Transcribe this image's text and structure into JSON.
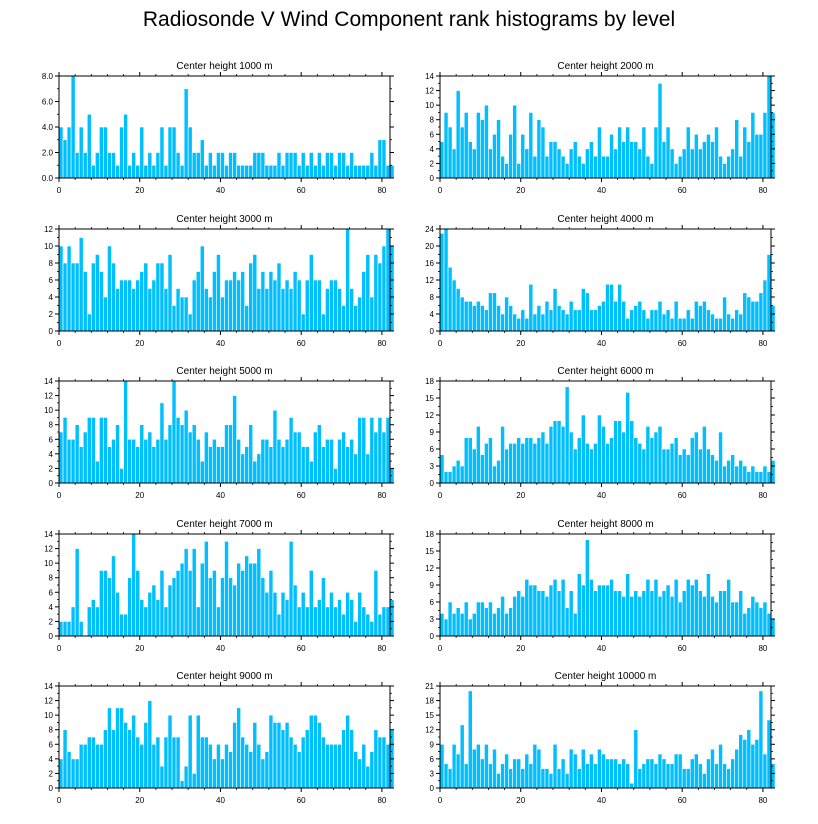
{
  "title": "Radiosonde V Wind Component rank histograms by level",
  "colors": {
    "bar": "#00bfff",
    "bar_edge": "#ffffff",
    "axis": "#000000"
  },
  "chart_data": [
    {
      "type": "bar",
      "title": "Center height 1000 m",
      "xlim": [
        0,
        82
      ],
      "ylim": [
        0,
        8
      ],
      "yticks": [
        "0.0",
        "2.0",
        "4.0",
        "6.0",
        "8.0"
      ],
      "ytick_values": [
        0,
        2,
        4,
        6,
        8
      ],
      "xticks": [
        "0",
        "20",
        "40",
        "60",
        "80"
      ],
      "xtick_values": [
        0,
        20,
        40,
        60,
        80
      ],
      "values": [
        4,
        3,
        4,
        8,
        2,
        4,
        2,
        5,
        1,
        2,
        4,
        4,
        2,
        2,
        1,
        4,
        5,
        1,
        2,
        1,
        4,
        1,
        2,
        1,
        2,
        4,
        1,
        4,
        4,
        2,
        1,
        7,
        4,
        2,
        2,
        3,
        1,
        2,
        1,
        2,
        2,
        1,
        2,
        2,
        1,
        1,
        1,
        1,
        2,
        2,
        2,
        1,
        1,
        1,
        2,
        1,
        2,
        2,
        2,
        1,
        2,
        1,
        2,
        1,
        2,
        1,
        2,
        2,
        1,
        2,
        2,
        1,
        2,
        1,
        1,
        1,
        1,
        2,
        1,
        3,
        3,
        1,
        1
      ]
    },
    {
      "type": "bar",
      "title": "Center height 2000 m",
      "xlim": [
        0,
        82
      ],
      "ylim": [
        0,
        14
      ],
      "yticks": [
        "0",
        "2",
        "4",
        "6",
        "8",
        "10",
        "12",
        "14"
      ],
      "ytick_values": [
        0,
        2,
        4,
        6,
        8,
        10,
        12,
        14
      ],
      "xticks": [
        "0",
        "20",
        "40",
        "60",
        "80"
      ],
      "xtick_values": [
        0,
        20,
        40,
        60,
        80
      ],
      "values": [
        5,
        9,
        7,
        4,
        12,
        7,
        9,
        5,
        4,
        9,
        8,
        10,
        4,
        6,
        8,
        3,
        2,
        6,
        10,
        2,
        6,
        4,
        9,
        3,
        8,
        7,
        3,
        5,
        5,
        4,
        3,
        2,
        4,
        5,
        3,
        2,
        4,
        5,
        3,
        7,
        3,
        3,
        6,
        4,
        7,
        5,
        7,
        5,
        5,
        4,
        7,
        3,
        2,
        7,
        13,
        5,
        7,
        4,
        2,
        3,
        4,
        7,
        4,
        6,
        4,
        5,
        6,
        5,
        7,
        3,
        2,
        3,
        4,
        8,
        3,
        7,
        5,
        9,
        6,
        6,
        9,
        14,
        9
      ]
    },
    {
      "type": "bar",
      "title": "Center height 3000 m",
      "xlim": [
        0,
        82
      ],
      "ylim": [
        0,
        12
      ],
      "yticks": [
        "0",
        "2",
        "4",
        "6",
        "8",
        "10",
        "12"
      ],
      "ytick_values": [
        0,
        2,
        4,
        6,
        8,
        10,
        12
      ],
      "xticks": [
        "0",
        "20",
        "40",
        "60",
        "80"
      ],
      "xtick_values": [
        0,
        20,
        40,
        60,
        80
      ],
      "values": [
        10,
        8,
        10,
        8,
        8,
        11,
        7,
        2,
        8,
        9,
        7,
        4,
        10,
        8,
        5,
        6,
        6,
        6,
        5,
        6,
        7,
        8,
        5,
        6,
        8,
        8,
        5,
        9,
        3,
        5,
        4,
        4,
        2,
        6,
        7,
        10,
        5,
        4,
        7,
        9,
        4,
        6,
        6,
        7,
        6,
        7,
        3,
        8,
        9,
        5,
        7,
        5,
        7,
        6,
        8,
        5,
        6,
        5,
        7,
        6,
        2,
        6,
        9,
        6,
        6,
        2,
        5,
        6,
        6,
        5,
        3,
        12,
        5,
        3,
        4,
        7,
        9,
        4,
        9,
        8,
        10,
        12,
        10
      ]
    },
    {
      "type": "bar",
      "title": "Center height 4000 m",
      "xlim": [
        0,
        82
      ],
      "ylim": [
        0,
        24
      ],
      "yticks": [
        "0",
        "4",
        "8",
        "12",
        "16",
        "20",
        "24"
      ],
      "ytick_values": [
        0,
        4,
        8,
        12,
        16,
        20,
        24
      ],
      "xticks": [
        "0",
        "20",
        "40",
        "60",
        "80"
      ],
      "xtick_values": [
        0,
        20,
        40,
        60,
        80
      ],
      "values": [
        23,
        24,
        15,
        12,
        10,
        8,
        7,
        7,
        6,
        7,
        6,
        5,
        9,
        9,
        6,
        4,
        8,
        6,
        4,
        3,
        5,
        3,
        11,
        4,
        6,
        4,
        7,
        5,
        10,
        6,
        5,
        4,
        7,
        5,
        5,
        10,
        9,
        5,
        5,
        6,
        7,
        11,
        11,
        7,
        11,
        7,
        3,
        5,
        6,
        7,
        5,
        3,
        5,
        5,
        7,
        4,
        5,
        3,
        7,
        3,
        3,
        5,
        3,
        7,
        6,
        7,
        5,
        4,
        3,
        3,
        8,
        4,
        3,
        5,
        4,
        9,
        8,
        7,
        7,
        9,
        12,
        18,
        6
      ]
    },
    {
      "type": "bar",
      "title": "Center height 5000 m",
      "xlim": [
        0,
        82
      ],
      "ylim": [
        0,
        14
      ],
      "yticks": [
        "0",
        "2",
        "4",
        "6",
        "8",
        "10",
        "12",
        "14"
      ],
      "ytick_values": [
        0,
        2,
        4,
        6,
        8,
        10,
        12,
        14
      ],
      "xticks": [
        "0",
        "20",
        "40",
        "60",
        "80"
      ],
      "xtick_values": [
        0,
        20,
        40,
        60,
        80
      ],
      "values": [
        7,
        9,
        6,
        6,
        8,
        5,
        7,
        9,
        9,
        3,
        9,
        9,
        5,
        6,
        8,
        2,
        14,
        6,
        6,
        5,
        8,
        6,
        7,
        5,
        6,
        11,
        6,
        8,
        14,
        9,
        8,
        10,
        7,
        8,
        6,
        3,
        7,
        5,
        6,
        5,
        5,
        8,
        8,
        12,
        6,
        4,
        5,
        8,
        3,
        4,
        6,
        6,
        5,
        10,
        6,
        5,
        6,
        9,
        7,
        7,
        5,
        5,
        3,
        7,
        8,
        5,
        6,
        6,
        2,
        6,
        7,
        5,
        6,
        4,
        9,
        9,
        4,
        9,
        7,
        9,
        7,
        9,
        2
      ]
    },
    {
      "type": "bar",
      "title": "Center height 6000 m",
      "xlim": [
        0,
        82
      ],
      "ylim": [
        0,
        18
      ],
      "yticks": [
        "0",
        "3",
        "6",
        "9",
        "12",
        "15",
        "18"
      ],
      "ytick_values": [
        0,
        3,
        6,
        9,
        12,
        15,
        18
      ],
      "xticks": [
        "0",
        "20",
        "40",
        "60",
        "80"
      ],
      "xtick_values": [
        0,
        20,
        40,
        60,
        80
      ],
      "values": [
        5,
        2,
        2,
        3,
        4,
        3,
        8,
        8,
        6,
        10,
        5,
        7,
        8,
        3,
        4,
        10,
        6,
        7,
        7,
        8,
        7,
        8,
        8,
        7,
        8,
        9,
        7,
        10,
        11,
        11,
        10,
        17,
        9,
        6,
        8,
        12,
        7,
        6,
        7,
        12,
        10,
        7,
        8,
        11,
        11,
        9,
        16,
        11,
        8,
        7,
        6,
        10,
        8,
        9,
        10,
        6,
        6,
        7,
        8,
        5,
        6,
        5,
        8,
        9,
        6,
        10,
        6,
        5,
        4,
        9,
        3,
        4,
        5,
        3,
        4,
        3,
        2,
        3,
        2,
        2,
        3,
        2,
        4
      ]
    },
    {
      "type": "bar",
      "title": "Center height 7000 m",
      "xlim": [
        0,
        82
      ],
      "ylim": [
        0,
        14
      ],
      "yticks": [
        "0",
        "2",
        "4",
        "6",
        "8",
        "10",
        "12",
        "14"
      ],
      "ytick_values": [
        0,
        2,
        4,
        6,
        8,
        10,
        12,
        14
      ],
      "xticks": [
        "0",
        "20",
        "40",
        "60",
        "80"
      ],
      "xtick_values": [
        0,
        20,
        40,
        60,
        80
      ],
      "values": [
        2,
        2,
        2,
        4,
        12,
        2,
        0,
        4,
        5,
        4,
        9,
        9,
        8,
        11,
        6,
        3,
        3,
        8,
        14,
        9,
        5,
        4,
        6,
        7,
        5,
        9,
        4,
        7,
        8,
        9,
        10,
        12,
        9,
        12,
        4,
        10,
        13,
        8,
        9,
        4,
        8,
        13,
        8,
        7,
        10,
        9,
        11,
        10,
        10,
        12,
        8,
        6,
        9,
        6,
        3,
        6,
        5,
        13,
        7,
        4,
        6,
        4,
        9,
        4,
        5,
        8,
        4,
        6,
        4,
        5,
        3,
        6,
        5,
        2,
        6,
        4,
        3,
        2,
        9,
        3,
        4,
        4,
        5
      ]
    },
    {
      "type": "bar",
      "title": "Center height 8000 m",
      "xlim": [
        0,
        82
      ],
      "ylim": [
        0,
        18
      ],
      "yticks": [
        "0",
        "3",
        "6",
        "9",
        "12",
        "15",
        "18"
      ],
      "ytick_values": [
        0,
        3,
        6,
        9,
        12,
        15,
        18
      ],
      "xticks": [
        "0",
        "20",
        "40",
        "60",
        "80"
      ],
      "xtick_values": [
        0,
        20,
        40,
        60,
        80
      ],
      "values": [
        4,
        3,
        6,
        4,
        5,
        4,
        6,
        3,
        4,
        6,
        6,
        5,
        6,
        4,
        5,
        7,
        4,
        5,
        7,
        8,
        7,
        10,
        9,
        9,
        8,
        8,
        7,
        9,
        10,
        8,
        10,
        5,
        8,
        4,
        11,
        9,
        17,
        10,
        8,
        9,
        9,
        9,
        10,
        8,
        8,
        7,
        11,
        7,
        8,
        7,
        8,
        10,
        8,
        10,
        7,
        8,
        9,
        7,
        10,
        6,
        8,
        10,
        9,
        10,
        8,
        7,
        11,
        7,
        6,
        8,
        8,
        10,
        6,
        6,
        8,
        4,
        5,
        7,
        6,
        5,
        6,
        4,
        3
      ]
    },
    {
      "type": "bar",
      "title": "Center height 9000 m",
      "xlim": [
        0,
        82
      ],
      "ylim": [
        0,
        14
      ],
      "yticks": [
        "0",
        "2",
        "4",
        "6",
        "8",
        "10",
        "12",
        "14"
      ],
      "ytick_values": [
        0,
        2,
        4,
        6,
        8,
        10,
        12,
        14
      ],
      "xticks": [
        "0",
        "20",
        "40",
        "60",
        "80"
      ],
      "xtick_values": [
        0,
        20,
        40,
        60,
        80
      ],
      "values": [
        4,
        8,
        5,
        4,
        4,
        6,
        6,
        7,
        7,
        6,
        6,
        8,
        11,
        8,
        11,
        11,
        9,
        8,
        10,
        7,
        6,
        9,
        12,
        6,
        7,
        3,
        7,
        10,
        7,
        7,
        1,
        3,
        10,
        2,
        10,
        7,
        7,
        6,
        4,
        6,
        4,
        6,
        5,
        9,
        11,
        7,
        6,
        5,
        9,
        6,
        4,
        5,
        10,
        9,
        9,
        8,
        9,
        7,
        6,
        5,
        7,
        8,
        10,
        10,
        9,
        7,
        6,
        6,
        6,
        6,
        8,
        10,
        8,
        5,
        4,
        6,
        3,
        5,
        8,
        7,
        7,
        6,
        8
      ]
    },
    {
      "type": "bar",
      "title": "Center height 10000 m",
      "xlim": [
        0,
        82
      ],
      "ylim": [
        0,
        21
      ],
      "yticks": [
        "0",
        "3",
        "6",
        "9",
        "12",
        "15",
        "18",
        "21"
      ],
      "ytick_values": [
        0,
        3,
        6,
        9,
        12,
        15,
        18,
        21
      ],
      "xticks": [
        "0",
        "20",
        "40",
        "60",
        "80"
      ],
      "xtick_values": [
        0,
        20,
        40,
        60,
        80
      ],
      "values": [
        9,
        5,
        4,
        9,
        7,
        13,
        5,
        20,
        8,
        9,
        6,
        9,
        5,
        8,
        3,
        5,
        7,
        4,
        6,
        6,
        4,
        7,
        5,
        9,
        8,
        4,
        4,
        3,
        9,
        4,
        6,
        3,
        8,
        7,
        4,
        8,
        5,
        7,
        5,
        8,
        7,
        6,
        6,
        6,
        5,
        6,
        5,
        1,
        12,
        4,
        5,
        6,
        6,
        5,
        7,
        6,
        5,
        5,
        7,
        7,
        4,
        4,
        6,
        7,
        5,
        3,
        6,
        8,
        5,
        9,
        5,
        4,
        6,
        8,
        11,
        10,
        12,
        9,
        10,
        20,
        7,
        14,
        5
      ]
    }
  ]
}
